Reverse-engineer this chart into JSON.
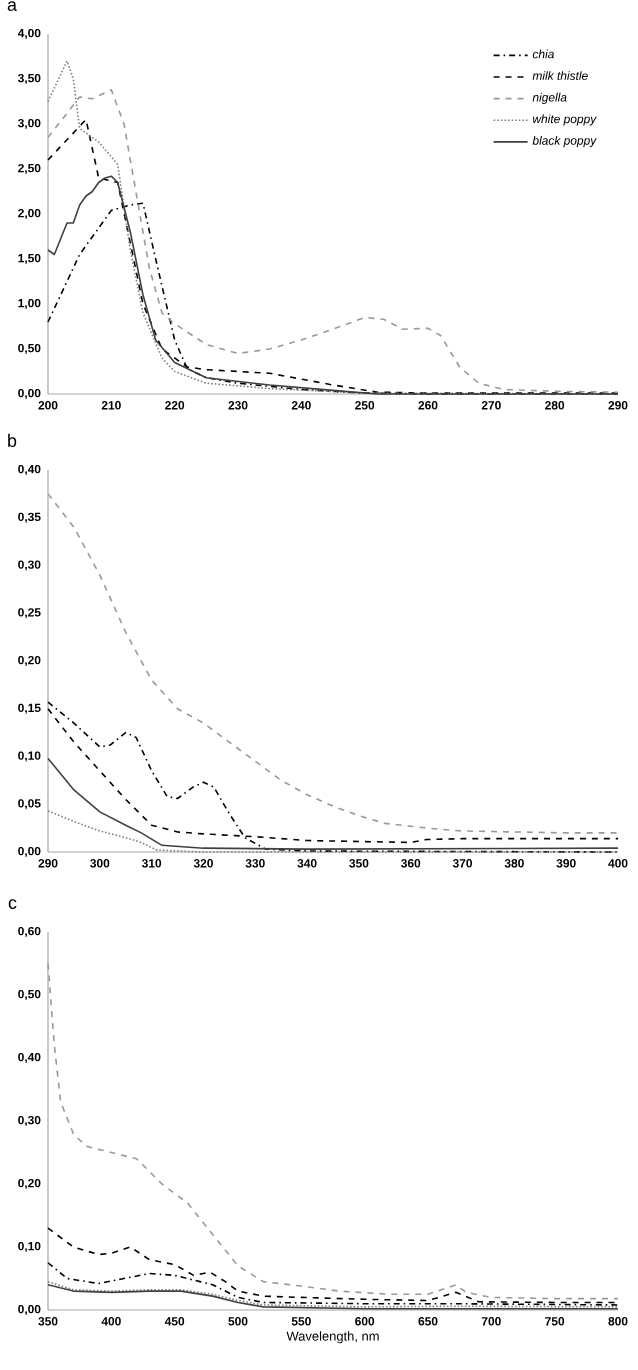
{
  "chart_data": [
    {
      "type": "line",
      "title": "a",
      "xlim": [
        200,
        290
      ],
      "xticks": [
        200,
        210,
        220,
        230,
        240,
        250,
        260,
        270,
        280,
        290
      ],
      "ylim": [
        0,
        4
      ],
      "yticks": [
        {
          "value": 0,
          "label": "0,00"
        },
        {
          "value": 0.5,
          "label": "0,50"
        },
        {
          "value": 1,
          "label": "1,00"
        },
        {
          "value": 1.5,
          "label": "1,50"
        },
        {
          "value": 2,
          "label": "2,00"
        },
        {
          "value": 2.5,
          "label": "2,50"
        },
        {
          "value": 3,
          "label": "3,00"
        },
        {
          "value": 3.5,
          "label": "3,50"
        },
        {
          "value": 4,
          "label": "4,00"
        }
      ],
      "legend": "top right",
      "series": [
        {
          "name": "chia",
          "color": "#000000",
          "line_style": "dashdot",
          "x": [
            200,
            205,
            210,
            213,
            215,
            217,
            220,
            222,
            225,
            230,
            240,
            250,
            260,
            290
          ],
          "values": [
            0.8,
            1.55,
            2.04,
            2.1,
            2.12,
            1.5,
            0.6,
            0.28,
            0.18,
            0.12,
            0.05,
            0.01,
            0.0,
            0.0
          ]
        },
        {
          "name": "milk thistle",
          "color": "#000000",
          "line_style": "dashed",
          "x": [
            200,
            206,
            208,
            211,
            215,
            218,
            222,
            225,
            235,
            245,
            252,
            260,
            290
          ],
          "values": [
            2.6,
            3.05,
            2.4,
            2.35,
            1.0,
            0.5,
            0.3,
            0.27,
            0.23,
            0.1,
            0.02,
            0.01,
            0.01
          ]
        },
        {
          "name": "nigella",
          "color": "#999999",
          "line_style": "dashed",
          "x": [
            200,
            205,
            207,
            210,
            212,
            214,
            216,
            218,
            220,
            225,
            230,
            235,
            240,
            245,
            250,
            253,
            256,
            260,
            262,
            265,
            268,
            272,
            280,
            290
          ],
          "values": [
            2.85,
            3.3,
            3.28,
            3.38,
            3.0,
            2.2,
            1.4,
            0.9,
            0.78,
            0.55,
            0.45,
            0.5,
            0.6,
            0.72,
            0.85,
            0.83,
            0.72,
            0.73,
            0.65,
            0.3,
            0.12,
            0.05,
            0.03,
            0.02
          ]
        },
        {
          "name": "white poppy",
          "color": "#7f7f7f",
          "line_style": "dotted",
          "x": [
            200,
            202,
            203,
            204,
            205,
            208,
            211,
            213,
            215,
            218,
            220,
            225,
            235,
            250,
            290
          ],
          "values": [
            3.25,
            3.55,
            3.7,
            3.5,
            2.95,
            2.8,
            2.55,
            1.6,
            0.9,
            0.4,
            0.25,
            0.12,
            0.06,
            0.01,
            0.0
          ]
        },
        {
          "name": "black poppy",
          "color": "#404040",
          "line_style": "solid",
          "x": [
            200,
            201,
            203,
            204,
            205,
            206,
            207,
            208,
            209,
            210,
            211,
            213,
            215,
            217,
            220,
            225,
            235,
            245,
            252,
            290
          ],
          "values": [
            1.6,
            1.55,
            1.9,
            1.9,
            2.1,
            2.2,
            2.25,
            2.35,
            2.4,
            2.42,
            2.35,
            1.8,
            1.1,
            0.6,
            0.35,
            0.18,
            0.1,
            0.04,
            0.0,
            0.0
          ]
        }
      ]
    },
    {
      "type": "line",
      "title": "b",
      "xlim": [
        290,
        400
      ],
      "xticks": [
        290,
        300,
        310,
        320,
        330,
        340,
        350,
        360,
        370,
        380,
        390,
        400
      ],
      "ylim": [
        0,
        0.4
      ],
      "yticks": [
        {
          "value": 0,
          "label": "0,00"
        },
        {
          "value": 0.05,
          "label": "0,05"
        },
        {
          "value": 0.1,
          "label": "0,10"
        },
        {
          "value": 0.15,
          "label": "0,15"
        },
        {
          "value": 0.2,
          "label": "0,20"
        },
        {
          "value": 0.25,
          "label": "0,25"
        },
        {
          "value": 0.3,
          "label": "0,30"
        },
        {
          "value": 0.35,
          "label": "0,35"
        },
        {
          "value": 0.4,
          "label": "0,40"
        }
      ],
      "series": [
        {
          "color": "#000000",
          "line_style": "dashdot",
          "x": [
            290,
            295,
            300,
            302,
            305,
            307,
            310,
            313,
            315,
            318,
            320,
            322,
            325,
            328,
            332,
            340,
            400
          ],
          "values": [
            0.157,
            0.135,
            0.11,
            0.112,
            0.125,
            0.12,
            0.085,
            0.058,
            0.056,
            0.068,
            0.073,
            0.068,
            0.04,
            0.015,
            0.003,
            0.001,
            0.0
          ]
        },
        {
          "color": "#000000",
          "line_style": "dashed",
          "x": [
            290,
            295,
            300,
            305,
            310,
            315,
            320,
            330,
            340,
            350,
            360,
            363,
            370,
            380,
            400
          ],
          "values": [
            0.15,
            0.115,
            0.085,
            0.055,
            0.028,
            0.021,
            0.019,
            0.016,
            0.012,
            0.011,
            0.01,
            0.013,
            0.014,
            0.014,
            0.014
          ]
        },
        {
          "color": "#999999",
          "line_style": "dashed",
          "x": [
            290,
            295,
            300,
            305,
            310,
            315,
            320,
            325,
            330,
            335,
            340,
            345,
            350,
            355,
            360,
            365,
            370,
            380,
            390,
            400
          ],
          "values": [
            0.375,
            0.34,
            0.29,
            0.23,
            0.18,
            0.15,
            0.135,
            0.115,
            0.095,
            0.075,
            0.06,
            0.048,
            0.038,
            0.03,
            0.027,
            0.024,
            0.022,
            0.021,
            0.02,
            0.02
          ]
        },
        {
          "color": "#7f7f7f",
          "line_style": "dotted",
          "x": [
            290,
            295,
            300,
            305,
            308,
            311,
            320,
            400
          ],
          "values": [
            0.043,
            0.032,
            0.022,
            0.015,
            0.01,
            0.002,
            0.0,
            0.0
          ]
        },
        {
          "color": "#404040",
          "line_style": "solid",
          "x": [
            290,
            295,
            300,
            305,
            308,
            312,
            320,
            340,
            400
          ],
          "values": [
            0.098,
            0.065,
            0.042,
            0.028,
            0.02,
            0.007,
            0.004,
            0.003,
            0.004
          ]
        }
      ]
    },
    {
      "type": "line",
      "title": "c",
      "xlabel": "Wavelength, nm",
      "xlim": [
        350,
        800
      ],
      "xticks": [
        350,
        400,
        450,
        500,
        550,
        600,
        650,
        700,
        750,
        800
      ],
      "ylim": [
        0,
        0.6
      ],
      "yticks": [
        {
          "value": 0,
          "label": "0,00"
        },
        {
          "value": 0.1,
          "label": "0,10"
        },
        {
          "value": 0.2,
          "label": "0,20"
        },
        {
          "value": 0.3,
          "label": "0,30"
        },
        {
          "value": 0.4,
          "label": "0,40"
        },
        {
          "value": 0.5,
          "label": "0,50"
        },
        {
          "value": 0.6,
          "label": "0,60"
        }
      ],
      "series": [
        {
          "color": "#000000",
          "line_style": "dashdot",
          "x": [
            350,
            365,
            390,
            410,
            430,
            450,
            470,
            480,
            500,
            520,
            600,
            670,
            800
          ],
          "values": [
            0.075,
            0.05,
            0.042,
            0.05,
            0.058,
            0.055,
            0.045,
            0.04,
            0.02,
            0.012,
            0.01,
            0.01,
            0.008
          ]
        },
        {
          "color": "#000000",
          "line_style": "dashed",
          "x": [
            350,
            370,
            390,
            400,
            415,
            430,
            450,
            465,
            478,
            490,
            500,
            520,
            550,
            600,
            650,
            672,
            690,
            750,
            800
          ],
          "values": [
            0.13,
            0.1,
            0.088,
            0.09,
            0.1,
            0.08,
            0.072,
            0.055,
            0.06,
            0.045,
            0.03,
            0.022,
            0.02,
            0.017,
            0.015,
            0.028,
            0.013,
            0.012,
            0.012
          ]
        },
        {
          "color": "#999999",
          "line_style": "dashed",
          "x": [
            350,
            355,
            360,
            370,
            380,
            400,
            420,
            440,
            460,
            480,
            500,
            520,
            550,
            580,
            620,
            650,
            665,
            672,
            680,
            700,
            750,
            800
          ],
          "values": [
            0.55,
            0.42,
            0.33,
            0.28,
            0.26,
            0.25,
            0.24,
            0.2,
            0.17,
            0.12,
            0.07,
            0.045,
            0.038,
            0.03,
            0.025,
            0.025,
            0.035,
            0.04,
            0.028,
            0.02,
            0.018,
            0.018
          ]
        },
        {
          "color": "#7f7f7f",
          "line_style": "dotted",
          "x": [
            350,
            370,
            400,
            430,
            455,
            480,
            500,
            520,
            600,
            672,
            800
          ],
          "values": [
            0.045,
            0.032,
            0.03,
            0.032,
            0.032,
            0.025,
            0.015,
            0.008,
            0.005,
            0.006,
            0.005
          ]
        },
        {
          "color": "#404040",
          "line_style": "solid",
          "x": [
            350,
            370,
            400,
            430,
            455,
            480,
            500,
            520,
            600,
            800
          ],
          "values": [
            0.04,
            0.03,
            0.028,
            0.03,
            0.03,
            0.022,
            0.012,
            0.005,
            0.002,
            0.002
          ]
        }
      ]
    }
  ]
}
